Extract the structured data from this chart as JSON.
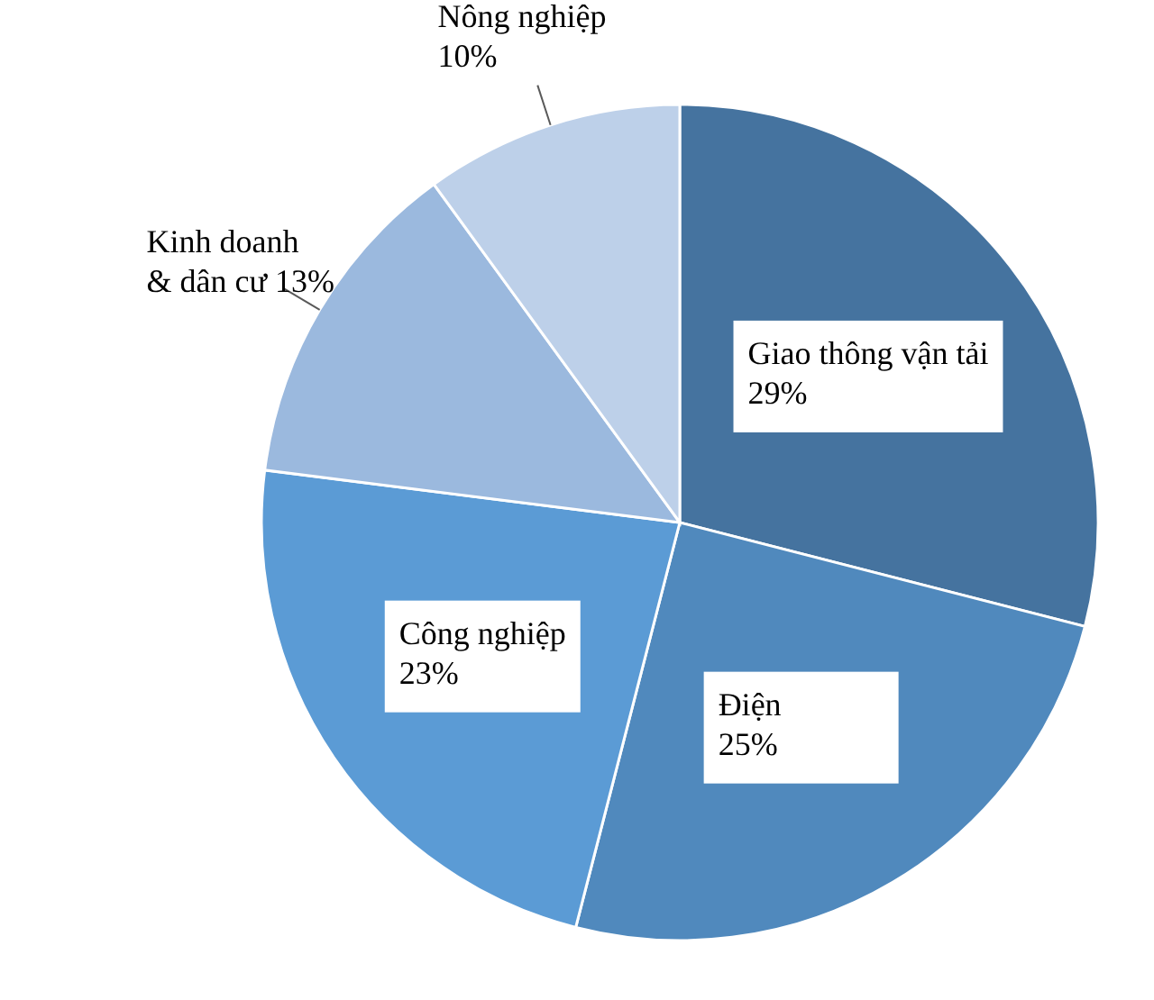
{
  "chart_data": {
    "type": "pie",
    "categories": [
      "Giao thông vận tải",
      "Điện",
      "Công nghiệp",
      "Kinh doanh & dân cư",
      "Nông nghiệp"
    ],
    "values": [
      29,
      25,
      23,
      13,
      10
    ],
    "colors": [
      "#45739f",
      "#5089bd",
      "#5b9bd5",
      "#9bb9de",
      "#bdd0e9"
    ],
    "value_labels": [
      "29%",
      "25%",
      "23%",
      "13%",
      "10%"
    ]
  }
}
